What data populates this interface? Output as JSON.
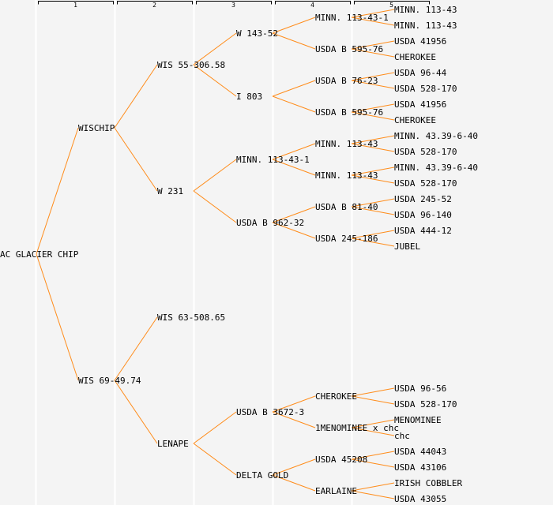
{
  "columns": [
    "1",
    "2",
    "3",
    "4",
    "5"
  ],
  "colors": {
    "line": "#ff8c1a",
    "background": "#f4f4f4",
    "separator": "#ffffff"
  },
  "tree": {
    "label": "AC GLACIER CHIP",
    "children": [
      {
        "label": "WISCHIP",
        "children": [
          {
            "label": "WIS 55-306.58",
            "children": [
              {
                "label": "W 143-52",
                "children": [
                  {
                    "label": "MINN. 113-43-1",
                    "children": [
                      {
                        "label": "MINN. 113-43"
                      },
                      {
                        "label": "MINN. 113-43"
                      }
                    ]
                  },
                  {
                    "label": "USDA B 595-76",
                    "children": [
                      {
                        "label": "USDA 41956"
                      },
                      {
                        "label": "CHEROKEE"
                      }
                    ]
                  }
                ]
              },
              {
                "label": "I 803",
                "children": [
                  {
                    "label": "USDA B 76-23",
                    "children": [
                      {
                        "label": "USDA 96-44"
                      },
                      {
                        "label": "USDA 528-170"
                      }
                    ]
                  },
                  {
                    "label": "USDA B 595-76",
                    "children": [
                      {
                        "label": "USDA 41956"
                      },
                      {
                        "label": "CHEROKEE"
                      }
                    ]
                  }
                ]
              }
            ]
          },
          {
            "label": "W 231",
            "children": [
              {
                "label": "MINN. 113-43-1",
                "children": [
                  {
                    "label": "MINN. 113-43",
                    "children": [
                      {
                        "label": "MINN. 43.39-6-40"
                      },
                      {
                        "label": "USDA 528-170"
                      }
                    ]
                  },
                  {
                    "label": "MINN. 113-43",
                    "children": [
                      {
                        "label": "MINN. 43.39-6-40"
                      },
                      {
                        "label": "USDA 528-170"
                      }
                    ]
                  }
                ]
              },
              {
                "label": "USDA B 962-32",
                "children": [
                  {
                    "label": "USDA B 81-40",
                    "children": [
                      {
                        "label": "USDA 245-52"
                      },
                      {
                        "label": "USDA 96-140"
                      }
                    ]
                  },
                  {
                    "label": "USDA 245-186",
                    "children": [
                      {
                        "label": "USDA 444-12"
                      },
                      {
                        "label": "JUBEL"
                      }
                    ]
                  }
                ]
              }
            ]
          }
        ]
      },
      {
        "label": "WIS 69-49.74",
        "children": [
          {
            "label": "WIS 63-508.65"
          },
          {
            "label": "LENAPE",
            "children": [
              {
                "label": "USDA B 3672-3",
                "children": [
                  {
                    "label": "CHEROKEE",
                    "children": [
                      {
                        "label": "USDA 96-56"
                      },
                      {
                        "label": "USDA 528-170"
                      }
                    ]
                  },
                  {
                    "label": "1MENOMINEE x chc",
                    "children": [
                      {
                        "label": "MENOMINEE"
                      },
                      {
                        "label": "chc"
                      }
                    ]
                  }
                ]
              },
              {
                "label": "DELTA GOLD",
                "children": [
                  {
                    "label": "USDA 45208",
                    "children": [
                      {
                        "label": "USDA 44043"
                      },
                      {
                        "label": "USDA 43106"
                      }
                    ]
                  },
                  {
                    "label": "EARLAINE",
                    "children": [
                      {
                        "label": "IRISH COBBLER"
                      },
                      {
                        "label": "USDA 43055"
                      }
                    ]
                  }
                ]
              }
            ]
          }
        ]
      }
    ]
  }
}
